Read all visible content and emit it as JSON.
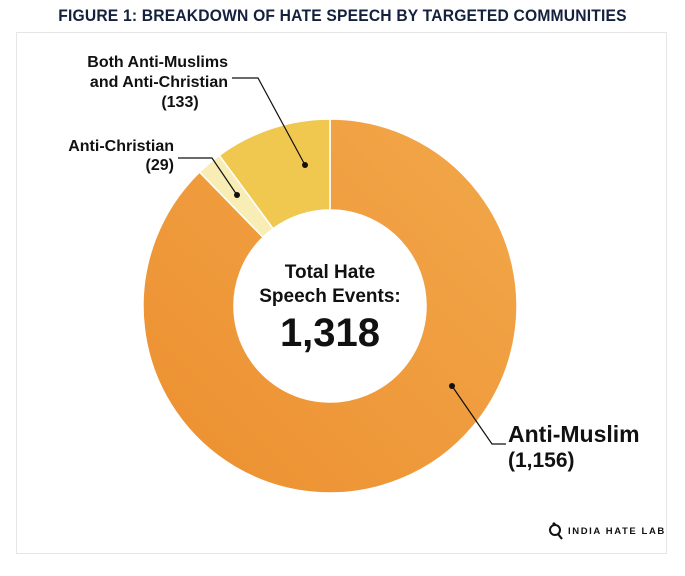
{
  "chart_data": {
    "type": "pie",
    "donut": true,
    "title": "FIGURE 1: BREAKDOWN OF HATE SPEECH BY TARGETED COMMUNITIES",
    "center_label": "Total Hate Speech Events:",
    "center_label_lines": [
      "Total Hate",
      "Speech Events:"
    ],
    "center_value": "1,318",
    "slices": [
      {
        "name": "Anti-Muslim",
        "value": 1156,
        "value_label": "(1,156)",
        "color": "#EE9537"
      },
      {
        "name": "Anti-Christian",
        "value": 29,
        "value_label": "(29)",
        "color": "#F8EDB5"
      },
      {
        "name": "Both Anti-Muslims and Anti-Christian",
        "name_lines": [
          "Both Anti-Muslims",
          "and Anti-Christian"
        ],
        "value": 133,
        "value_label": "(133)",
        "color": "#F0C850"
      }
    ],
    "start_angle": "top",
    "direction": "clockwise",
    "legend": "none"
  },
  "logo": {
    "text": "INDIA HATE LAB"
  }
}
